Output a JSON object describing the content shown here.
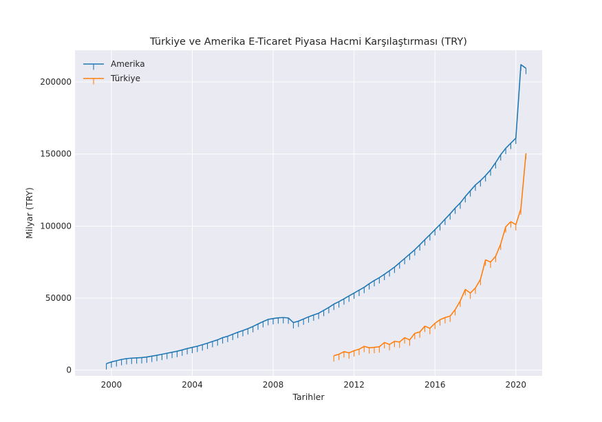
{
  "chart_data": {
    "type": "line",
    "title": "Türkiye ve Amerika E-Ticaret Piyasa Hacmi Karşılaştırması (TRY)",
    "xlabel": "Tarihler",
    "ylabel": "Milyar (TRY)",
    "xlim": [
      1998.2,
      2021.3
    ],
    "ylim": [
      -4000,
      222000
    ],
    "x_ticks": [
      2000,
      2004,
      2008,
      2012,
      2016,
      2020
    ],
    "y_ticks": [
      0,
      50000,
      100000,
      150000,
      200000
    ],
    "x_tick_labels": [
      "2000",
      "2004",
      "2008",
      "2012",
      "2016",
      "2020"
    ],
    "y_tick_labels": [
      "0",
      "50000",
      "100000",
      "150000",
      "200000"
    ],
    "grid": true,
    "legend_position": "top-left",
    "background_color": "#eaeaf2",
    "marker": "tickdown",
    "series": [
      {
        "name": "Amerika",
        "color": "#1f77b4",
        "x": [
          1999.75,
          2000.0,
          2000.25,
          2000.5,
          2000.75,
          2001.0,
          2001.25,
          2001.5,
          2001.75,
          2002.0,
          2002.25,
          2002.5,
          2002.75,
          2003.0,
          2003.25,
          2003.5,
          2003.75,
          2004.0,
          2004.25,
          2004.5,
          2004.75,
          2005.0,
          2005.25,
          2005.5,
          2005.75,
          2006.0,
          2006.25,
          2006.5,
          2006.75,
          2007.0,
          2007.25,
          2007.5,
          2007.75,
          2008.0,
          2008.25,
          2008.5,
          2008.75,
          2009.0,
          2009.25,
          2009.5,
          2009.75,
          2010.0,
          2010.25,
          2010.5,
          2010.75,
          2011.0,
          2011.25,
          2011.5,
          2011.75,
          2012.0,
          2012.25,
          2012.5,
          2012.75,
          2013.0,
          2013.25,
          2013.5,
          2013.75,
          2014.0,
          2014.25,
          2014.5,
          2014.75,
          2015.0,
          2015.25,
          2015.5,
          2015.75,
          2016.0,
          2016.25,
          2016.5,
          2016.75,
          2017.0,
          2017.25,
          2017.5,
          2017.75,
          2018.0,
          2018.25,
          2018.5,
          2018.75,
          2019.0,
          2019.25,
          2019.5,
          2019.75,
          2020.0,
          2020.25,
          2020.5
        ],
        "values": [
          4500,
          5700,
          6500,
          7400,
          8000,
          8300,
          8500,
          8700,
          9100,
          9700,
          10300,
          11000,
          11700,
          12400,
          13100,
          14000,
          15000,
          15800,
          16600,
          17600,
          18700,
          19900,
          21000,
          22500,
          23500,
          24900,
          26300,
          27500,
          28800,
          30300,
          32000,
          33700,
          35200,
          35800,
          36300,
          36500,
          36200,
          33000,
          34000,
          35500,
          37000,
          38300,
          39500,
          41500,
          43500,
          45800,
          47500,
          49500,
          51500,
          53500,
          55500,
          57500,
          60000,
          62200,
          64200,
          66500,
          69000,
          71500,
          74500,
          77500,
          80500,
          83500,
          87000,
          90500,
          94000,
          97500,
          101000,
          104800,
          108500,
          112500,
          116000,
          120500,
          124500,
          128500,
          131500,
          135000,
          139000,
          144000,
          149500,
          154000,
          157500,
          161000,
          212000,
          209500
        ]
      },
      {
        "name": "Türkiye",
        "color": "#ff7f0e",
        "x": [
          2011.0,
          2011.25,
          2011.5,
          2011.75,
          2012.0,
          2012.25,
          2012.5,
          2012.75,
          2013.0,
          2013.25,
          2013.5,
          2013.75,
          2014.0,
          2014.25,
          2014.5,
          2014.75,
          2015.0,
          2015.25,
          2015.5,
          2015.75,
          2016.0,
          2016.25,
          2016.5,
          2016.75,
          2017.0,
          2017.25,
          2017.5,
          2017.75,
          2018.0,
          2018.25,
          2018.5,
          2018.75,
          2019.0,
          2019.25,
          2019.5,
          2019.75,
          2020.0,
          2020.25,
          2020.5
        ],
        "values": [
          10000,
          11000,
          12800,
          12000,
          13500,
          14500,
          16500,
          15500,
          15800,
          16200,
          19200,
          17800,
          20000,
          19500,
          22500,
          21000,
          25500,
          26500,
          30500,
          29000,
          32500,
          35000,
          36500,
          37500,
          42000,
          48000,
          56000,
          53500,
          57000,
          63000,
          76500,
          75000,
          79000,
          87500,
          99500,
          103000,
          101000,
          112000,
          150500
        ]
      }
    ]
  }
}
